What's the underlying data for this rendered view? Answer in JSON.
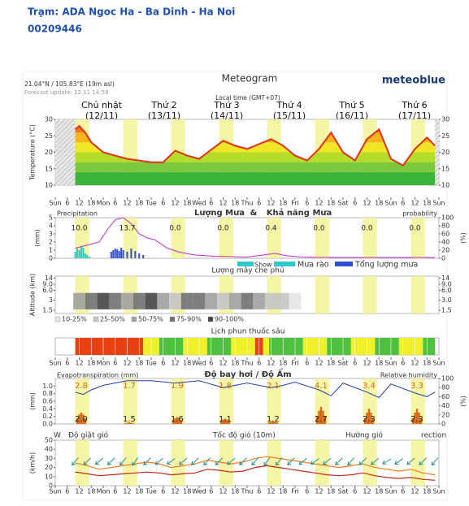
{
  "header": {
    "station": "Trạm: ADA Ngoc Ha - Ba Dinh - Ha Noi",
    "code": "00209446"
  },
  "meteogram": {
    "title": "Meteogram",
    "brand": "meteoblue",
    "location": "21.04°N / 105.83°E (19m asl)",
    "update": "Forecast update: 12.11 14:58",
    "timezone": "Local time (GMT+07)",
    "days": [
      {
        "name": "Chủ nhật",
        "date": "(12/11)"
      },
      {
        "name": "Thứ 2",
        "date": "(13/11)"
      },
      {
        "name": "Thứ 3",
        "date": "(14/11)"
      },
      {
        "name": "Thứ 4",
        "date": "(15/11)"
      },
      {
        "name": "Thứ 5",
        "date": "(16/11)"
      },
      {
        "name": "Thứ 6",
        "date": "(17/11)"
      }
    ],
    "time_xlim": [
      0,
      192
    ],
    "time_xticks": [
      {
        "value": 0,
        "label": "Sun"
      },
      6,
      12,
      18,
      {
        "value": 24,
        "label": "Mon"
      },
      {
        "value": 30,
        "label": "6"
      },
      {
        "value": 36,
        "label": "12"
      },
      {
        "value": 42,
        "label": "18"
      },
      {
        "value": 48,
        "label": "Tue"
      },
      {
        "value": 54,
        "label": "6"
      },
      {
        "value": 60,
        "label": "12"
      },
      {
        "value": 66,
        "label": "18"
      },
      {
        "value": 72,
        "label": "Wed"
      },
      {
        "value": 78,
        "label": "6"
      },
      {
        "value": 84,
        "label": "12"
      },
      {
        "value": 90,
        "label": "18"
      },
      {
        "value": 96,
        "label": "Thu"
      },
      {
        "value": 102,
        "label": "6"
      },
      {
        "value": 108,
        "label": "12"
      },
      {
        "value": 114,
        "label": "18"
      },
      {
        "value": 120,
        "label": "Fri"
      },
      {
        "value": 126,
        "label": "6"
      },
      {
        "value": 132,
        "label": "12"
      },
      {
        "value": 138,
        "label": "18"
      },
      {
        "value": 144,
        "label": "Sat"
      },
      {
        "value": 150,
        "label": "6"
      },
      {
        "value": 156,
        "label": "12"
      },
      {
        "value": 162,
        "label": "18"
      },
      {
        "value": 168,
        "label": "Sun"
      },
      {
        "value": 174,
        "label": "6"
      },
      {
        "value": 180,
        "label": "12"
      },
      {
        "value": 186,
        "label": "18"
      },
      {
        "value": 192,
        "label": "Sun"
      }
    ]
  },
  "chart_data": [
    {
      "type": "line",
      "y_label": "Temperature (°C)",
      "ylim": [
        10,
        30
      ],
      "yticks": [
        10,
        15,
        20,
        25,
        30
      ],
      "color": "#e0301e",
      "x": [
        10,
        12,
        15,
        18,
        24,
        30,
        36,
        48,
        54,
        60,
        66,
        72,
        84,
        90,
        96,
        108,
        114,
        120,
        126,
        132,
        138,
        144,
        150,
        156,
        162,
        168,
        174,
        180,
        186,
        190
      ],
      "values": [
        27,
        28,
        26,
        23,
        20,
        19,
        18,
        17,
        17,
        20.5,
        19,
        18,
        23.5,
        22,
        21,
        24,
        22,
        19,
        17.5,
        21,
        26,
        20,
        17.5,
        24,
        27,
        18,
        16,
        21,
        24.5,
        22
      ]
    },
    {
      "type": "bar",
      "left_title": "Precipitation",
      "titles": [
        "Lượng Mưa",
        "&",
        "Khả năng Mưa"
      ],
      "right_title": "probability",
      "y_label": "(mm)",
      "y2_label": "(%)",
      "ylim": [
        0,
        5
      ],
      "yticks": [
        0,
        1,
        2,
        3,
        4,
        5
      ],
      "y2lim": [
        0,
        100
      ],
      "y2ticks": [
        0,
        20,
        40,
        60,
        80,
        100
      ],
      "daily_totals": [
        "10.0",
        "13.7",
        "0.0",
        "0.0",
        "0.4",
        "0.0",
        "0.0",
        "0.0"
      ],
      "legend_extra": "Show",
      "series": [
        {
          "name": "Mưa rào",
          "color": "#2ec8c8",
          "x": [
            10,
            11,
            12,
            13,
            14,
            15,
            16,
            17
          ],
          "values": [
            0.8,
            1.2,
            1.0,
            1.5,
            1.3,
            0.6,
            0.4,
            0.2
          ]
        },
        {
          "name": "Tổng lượng mưa",
          "color": "#2f4fd0",
          "x": [
            28,
            29,
            30,
            31,
            32,
            33,
            34,
            36,
            38,
            40,
            42,
            44
          ],
          "values": [
            0.8,
            1.0,
            1.2,
            1.1,
            0.9,
            1.3,
            1.0,
            0.8,
            1.2,
            0.9,
            0.6,
            0.4
          ]
        },
        {
          "name": "probability",
          "color": "#c030c0",
          "axis": "y2",
          "x": [
            10,
            14,
            18,
            22,
            26,
            30,
            34,
            38,
            42,
            46,
            50,
            56,
            62,
            70,
            80,
            96,
            104,
            110,
            116,
            124,
            140,
            190
          ],
          "values": [
            25,
            30,
            35,
            40,
            70,
            95,
            100,
            85,
            60,
            50,
            45,
            25,
            15,
            8,
            5,
            3,
            8,
            12,
            6,
            3,
            2,
            2
          ]
        }
      ]
    },
    {
      "type": "cloud",
      "title": "Lượng mây che phủ",
      "y_label": "Altitude (km)",
      "log": true,
      "ylim": [
        1.2,
        16
      ],
      "yticks": [
        1.5,
        {
          "value": 3,
          "label": "3"
        },
        {
          "value": 6,
          "label": "6.0"
        },
        {
          "value": 9,
          "label": "9.0"
        },
        14
      ],
      "y2ticks": [
        1.5,
        {
          "value": 3,
          "label": "3.0"
        },
        {
          "value": 6,
          "label": "6.0"
        },
        {
          "value": 9,
          "label": "9.0"
        },
        14
      ],
      "legend": [
        {
          "label": "10-25%",
          "color": "#e4e4e4"
        },
        {
          "label": "25-50%",
          "color": "#c4c4c4"
        },
        {
          "label": "50-75%",
          "color": "#a0a0a0"
        },
        {
          "label": "75-90%",
          "color": "#707070"
        },
        {
          "label": "90-100%",
          "color": "#444444"
        }
      ],
      "x": [
        12,
        18,
        24,
        30,
        36,
        42,
        48,
        54,
        60,
        66,
        72,
        78,
        84,
        90,
        96,
        102,
        108,
        114,
        120
      ],
      "values": [
        60,
        80,
        90,
        85,
        70,
        80,
        90,
        60,
        40,
        75,
        85,
        60,
        30,
        60,
        80,
        50,
        30,
        40,
        20
      ]
    },
    {
      "type": "timeline",
      "title": "Lịch phun thuốc sâu",
      "x": [
        10,
        44,
        52,
        64,
        76,
        88,
        100,
        104,
        107,
        124,
        136,
        148,
        160,
        172,
        184,
        190
      ],
      "colors": [
        "#e84010",
        "#f0f028",
        "#50c040",
        "#f0f028",
        "#50c040",
        "#f0f028",
        "#e84010",
        "#f0f028",
        "#50c040",
        "#f0f028",
        "#50c040",
        "#f0f028",
        "#50c040",
        "#f0f028",
        "#50c040"
      ]
    },
    {
      "type": "bar",
      "left_title": "Evapotranspiration (mm)",
      "title": "Độ bay hơi / Độ Ẩm",
      "right_title": "Relative humidity",
      "y_label": "(mm)",
      "y2_label": "(%)",
      "ylim": [
        0,
        1.2
      ],
      "yticks": [
        {
          "value": 0,
          "label": "0.0"
        },
        {
          "value": 0.2,
          "label": "0.2"
        },
        {
          "value": 0.4,
          "label": "0.4"
        },
        {
          "value": 0.6,
          "label": "0.6"
        },
        {
          "value": 0.8,
          "label": "0.8"
        },
        {
          "value": 1,
          "label": "1.0"
        }
      ],
      "y2lim": [
        0,
        100
      ],
      "y2ticks": [
        0,
        20,
        40,
        60,
        80,
        100
      ],
      "top_labels": [
        "2.8",
        "1.7",
        "1.9",
        "1.8",
        "2.1",
        "4.1",
        "3.4",
        "3.3"
      ],
      "bottom_labels": [
        "2.0",
        "1.5",
        "1.6",
        "1.1",
        "1.2",
        "2.7",
        "2.3",
        "2.3"
      ],
      "series": [
        {
          "name": "evapotranspiration",
          "color": "#d86818",
          "x": [
            11,
            12,
            13,
            14,
            15,
            35,
            36,
            37,
            38,
            39,
            59,
            60,
            61,
            62,
            63,
            83,
            84,
            85,
            86,
            87,
            107,
            108,
            109,
            110,
            111,
            131,
            132,
            133,
            134,
            135,
            155,
            156,
            157,
            158,
            159,
            179,
            180,
            181,
            182,
            183
          ],
          "values": [
            0.15,
            0.25,
            0.3,
            0.25,
            0.15,
            0.02,
            0.03,
            0.04,
            0.03,
            0.02,
            0.1,
            0.15,
            0.18,
            0.15,
            0.1,
            0.08,
            0.12,
            0.14,
            0.12,
            0.08,
            0.04,
            0.06,
            0.07,
            0.06,
            0.04,
            0.2,
            0.35,
            0.45,
            0.35,
            0.2,
            0.15,
            0.3,
            0.4,
            0.3,
            0.15,
            0.15,
            0.3,
            0.4,
            0.3,
            0.15
          ]
        },
        {
          "name": "humidity",
          "color": "#1f3fa0",
          "axis": "y2",
          "x": [
            10,
            14,
            18,
            24,
            36,
            48,
            60,
            72,
            84,
            90,
            96,
            108,
            114,
            120,
            132,
            138,
            144,
            156,
            162,
            168,
            180,
            186,
            190
          ],
          "values": [
            70,
            65,
            75,
            85,
            95,
            95,
            90,
            95,
            80,
            85,
            90,
            80,
            85,
            92,
            75,
            62,
            90,
            70,
            58,
            88,
            68,
            60,
            70
          ]
        }
      ]
    },
    {
      "type": "line",
      "labels": [
        "W",
        "Độ giật gió",
        "Tốc độ gió (10m)",
        "Hướng gió",
        "rection"
      ],
      "y_label": "(km/h)",
      "ylim": [
        0,
        50
      ],
      "yticks": [
        0,
        10,
        20,
        30,
        40,
        50
      ],
      "series": [
        {
          "name": "gust",
          "color": "#f08020",
          "x": [
            10,
            16,
            22,
            28,
            34,
            40,
            46,
            52,
            58,
            64,
            70,
            76,
            82,
            88,
            94,
            100,
            106,
            112,
            118,
            124,
            130,
            136,
            142,
            148,
            154,
            160,
            166,
            172,
            178,
            184,
            190
          ],
          "values": [
            25,
            22,
            18,
            20,
            22,
            24,
            26,
            24,
            20,
            22,
            24,
            28,
            26,
            24,
            26,
            30,
            32,
            30,
            28,
            26,
            24,
            22,
            20,
            22,
            24,
            20,
            18,
            16,
            18,
            14,
            12
          ]
        },
        {
          "name": "speed",
          "color": "#c02818",
          "x": [
            10,
            16,
            22,
            28,
            34,
            40,
            46,
            52,
            58,
            64,
            70,
            76,
            82,
            88,
            94,
            100,
            106,
            112,
            118,
            124,
            130,
            136,
            142,
            148,
            154,
            160,
            166,
            172,
            178,
            184,
            190
          ],
          "values": [
            15,
            13,
            11,
            12,
            13,
            14,
            15,
            14,
            12,
            13,
            14,
            18,
            17,
            15,
            16,
            20,
            22,
            20,
            18,
            16,
            14,
            12,
            11,
            12,
            14,
            11,
            9,
            8,
            9,
            7,
            6
          ]
        }
      ],
      "direction_color": "#2a9090",
      "direction": [
        40,
        45,
        50,
        45,
        40,
        35,
        45,
        50,
        55,
        50,
        45,
        40,
        45,
        50,
        45,
        40,
        35,
        40,
        45,
        50,
        55,
        50,
        45,
        40,
        45,
        50,
        60,
        55,
        50,
        45,
        40
      ]
    }
  ]
}
